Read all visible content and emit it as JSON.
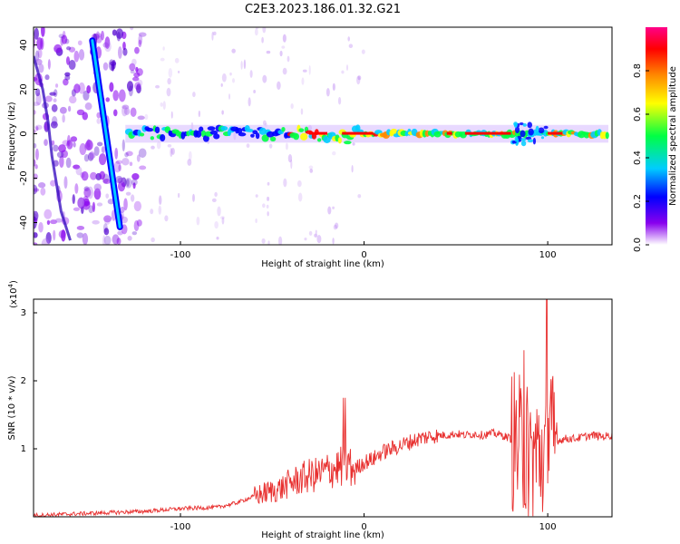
{
  "title": "C2E3.2023.186.01.32.G21",
  "colors": {
    "snr_line": "#e8302f",
    "frame": "#000000"
  },
  "chart_data": [
    {
      "type": "heatmap",
      "xlabel": "Height of straight line (km)",
      "ylabel": "Frequency (Hz)",
      "xlim": [
        -180,
        135
      ],
      "ylim": [
        -50,
        48
      ],
      "xticks": [
        -100,
        0,
        100
      ],
      "yticks": [
        -40,
        -20,
        0,
        20,
        40
      ],
      "grid": false,
      "colorbar": {
        "label": "Normalized spectral amplitude",
        "range": [
          0,
          1
        ],
        "ticks": [
          0.0,
          0.2,
          0.4,
          0.6,
          0.8
        ],
        "colormap": [
          "#ffffff",
          "#8800ee",
          "#0000ff",
          "#00ccff",
          "#00ff44",
          "#ffff00",
          "#ff8800",
          "#ff0000",
          "#ff0088"
        ]
      },
      "ridges": [
        {
          "name": "straight descending trace",
          "x": [
            -148,
            -133
          ],
          "y": [
            42,
            -42
          ]
        },
        {
          "name": "main band",
          "x": [
            -128,
            133
          ],
          "y": [
            0,
            0
          ]
        }
      ]
    },
    {
      "type": "line",
      "xlabel": "Height of straight line (km)",
      "ylabel": "SNR (10 * v/v)",
      "y_multiplier": "(x10",
      "y_multiplier_exp": "4",
      "xlim": [
        -180,
        135
      ],
      "ylim": [
        0,
        3.2
      ],
      "xticks": [
        -100,
        0,
        100
      ],
      "yticks": [
        1,
        2,
        3
      ],
      "grid": false,
      "series": [
        {
          "color": "#e8302f",
          "x": [
            -180,
            -160,
            -140,
            -120,
            -100,
            -90,
            -80,
            -70,
            -60,
            -50,
            -45,
            -40,
            -35,
            -30,
            -25,
            -20,
            -15,
            -10,
            -5,
            0,
            5,
            10,
            15,
            20,
            25,
            30,
            35,
            40,
            45,
            50,
            55,
            60,
            65,
            70,
            75,
            80,
            85,
            90,
            95,
            100,
            105,
            110,
            115,
            120,
            125,
            130,
            135
          ],
          "y": [
            0.02,
            0.04,
            0.06,
            0.08,
            0.12,
            0.13,
            0.14,
            0.2,
            0.3,
            0.38,
            0.42,
            0.5,
            0.55,
            0.6,
            0.62,
            0.68,
            0.72,
            0.75,
            0.7,
            0.8,
            0.85,
            0.95,
            1.0,
            1.05,
            1.1,
            1.15,
            1.18,
            1.2,
            1.2,
            1.22,
            1.2,
            1.22,
            1.2,
            1.23,
            1.2,
            1.15,
            1.0,
            0.9,
            0.9,
            1.0,
            1.12,
            1.15,
            1.15,
            1.18,
            1.2,
            1.18,
            1.2
          ]
        }
      ]
    }
  ]
}
